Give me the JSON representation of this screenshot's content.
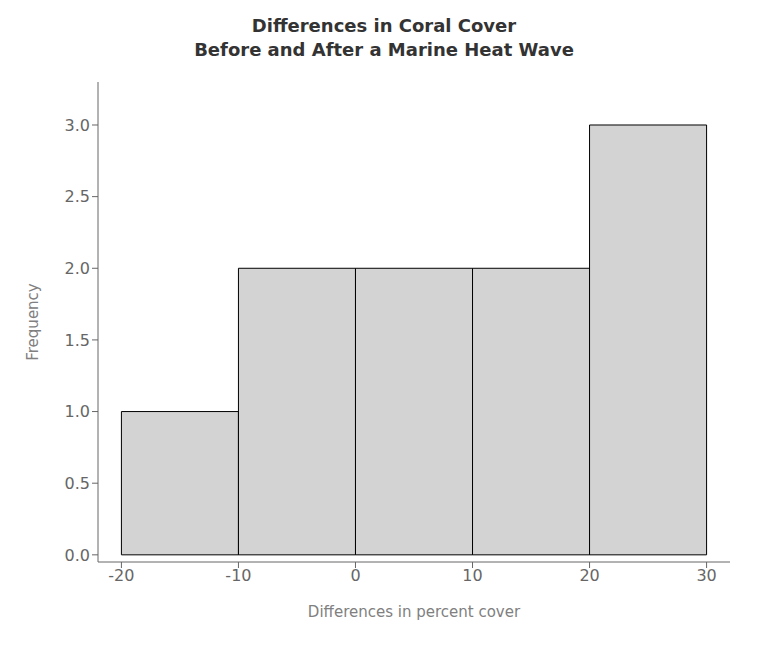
{
  "chart_data": {
    "type": "histogram",
    "title": "Differences in Coral Cover\nBefore and After a Marine Heat Wave",
    "xlabel": "Differences in percent cover",
    "ylabel": "Frequency",
    "bins": [
      -20,
      -10,
      0,
      10,
      20,
      30
    ],
    "values": [
      1,
      2,
      2,
      2,
      3
    ],
    "color": "#d3d3d3",
    "xlim": [
      -22,
      32
    ],
    "ylim": [
      -0.05,
      3.3
    ],
    "xticks": [
      -20,
      -10,
      0,
      10,
      20,
      30
    ],
    "yticks": [
      {
        "value": 0,
        "label": "0.0"
      },
      0.5,
      {
        "value": 1,
        "label": "1.0"
      },
      1.5,
      {
        "value": 2,
        "label": "2.0"
      },
      2.5,
      {
        "value": 3,
        "label": "3.0"
      }
    ],
    "grid": false
  }
}
